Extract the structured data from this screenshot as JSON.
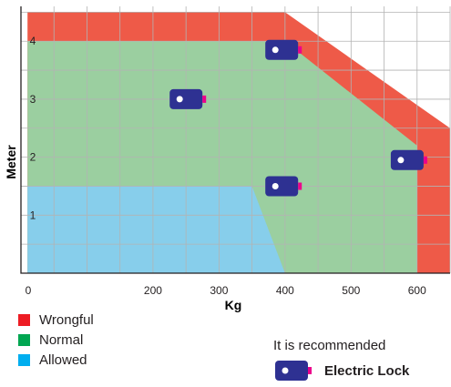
{
  "chart_data": {
    "type": "area",
    "xlabel": "Kg",
    "ylabel": "Meter",
    "xlim": [
      0,
      650
    ],
    "ylim": [
      0,
      4.6
    ],
    "x_ticks": [
      0,
      200,
      300,
      400,
      500,
      600
    ],
    "y_ticks": [
      1,
      2,
      3,
      4
    ],
    "grid": true,
    "regions": [
      {
        "name": "Wrongful",
        "color": "#ee5a48",
        "polygon": [
          [
            10,
            0
          ],
          [
            10,
            4.5
          ],
          [
            400,
            4.5
          ],
          [
            650,
            2.5
          ],
          [
            650,
            0
          ]
        ]
      },
      {
        "name": "Normal",
        "color": "#9bcfa0",
        "polygon": [
          [
            10,
            0
          ],
          [
            10,
            4
          ],
          [
            400,
            4
          ],
          [
            600,
            2.2
          ],
          [
            600,
            0
          ]
        ]
      },
      {
        "name": "Allowed",
        "color": "#87ceeb",
        "polygon": [
          [
            10,
            0
          ],
          [
            10,
            1.5
          ],
          [
            350,
            1.5
          ],
          [
            400,
            0
          ]
        ]
      }
    ],
    "locks": [
      {
        "x": 250,
        "y": 3.0
      },
      {
        "x": 395,
        "y": 3.85
      },
      {
        "x": 395,
        "y": 1.5
      },
      {
        "x": 585,
        "y": 1.95
      }
    ]
  },
  "legend": [
    {
      "label": "Wrongful",
      "color": "#ed1c24"
    },
    {
      "label": "Normal",
      "color": "#00a651"
    },
    {
      "label": "Allowed",
      "color": "#00aeef"
    }
  ],
  "recommendation": {
    "note": "It is recommended",
    "label": "Electric Lock",
    "icon": "electric-lock-icon",
    "icon_color": "#2e3192",
    "accent_color": "#ec008c"
  }
}
